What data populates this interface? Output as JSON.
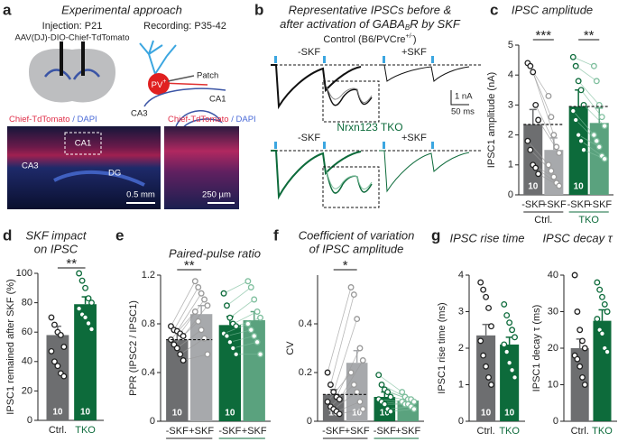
{
  "panel_a": {
    "letter": "a",
    "title": "Experimental approach",
    "injection": "Injection: P21",
    "virus": "AAV(DJ)-DIO-Chief-TdTomato",
    "recording": "Recording: P35-42",
    "cell": "PV",
    "cell_sup": "+",
    "patch": "Patch",
    "ca1": "CA1",
    "ca3": "CA3",
    "dg": "DG",
    "image_left": {
      "stain": "Chief-TdTomato",
      "dapi": "/ DAPI",
      "ca1": "CA1",
      "ca3": "CA3",
      "dg": "DG",
      "scale": "0.5 mm"
    },
    "image_right": {
      "stain": "Chief-TdTomato",
      "dapi": "/ DAPI",
      "scale": "250 µm"
    }
  },
  "panel_b": {
    "letter": "b",
    "title_line1": "Representative IPSCs before &",
    "title_line2": "after activation of GABA",
    "title_sub": "B",
    "title_end": "R by SKF",
    "control": "Control (B6/PVCre",
    "control_sup": "+/-",
    "control_end": ")",
    "minus_top": "-SKF",
    "plus_top": "+SKF",
    "tko": "Nrxn123 TKO",
    "minus_bottom": "-SKF",
    "plus_bottom": "+SKF",
    "scale_current": "1 nA",
    "scale_time": "50 ms"
  },
  "chart_data": [
    {
      "type": "bar",
      "letter": "c",
      "title": [
        "IPSC amplitude"
      ],
      "ylabel": "IPSC1 amplitude (nA)",
      "ylim": [
        0,
        5
      ],
      "yticks": [
        0,
        1,
        2,
        3,
        4,
        5
      ],
      "categories": [
        "-SKF",
        "+SKF",
        "-SKF",
        "+SKF"
      ],
      "groups": [
        "Ctrl.",
        "TKO"
      ],
      "values": [
        2.35,
        1.5,
        2.95,
        2.4
      ],
      "errors": [
        0.5,
        0.4,
        0.55,
        0.5
      ],
      "colors": [
        "#6d6e70",
        "#a7a9ac",
        "#0d6b3b",
        "#5aa27e"
      ],
      "point_colors": [
        "#222222",
        "#999999",
        "#0d6b3b",
        "#7fbf9e"
      ],
      "points": [
        [
          4.4,
          4.3,
          4.1,
          3.0,
          2.5,
          1.8,
          1.5,
          1.0,
          0.9,
          0.7
        ],
        [
          3.3,
          2.6,
          2.0,
          1.6,
          1.4,
          1.0,
          0.8,
          0.6,
          0.4,
          0.3
        ],
        [
          4.6,
          4.3,
          3.8,
          3.5,
          3.0,
          2.8,
          2.5,
          2.0,
          1.8,
          1.5
        ],
        [
          4.3,
          3.8,
          3.0,
          2.6,
          2.3,
          2.0,
          1.8,
          1.6,
          1.3,
          1.2
        ]
      ],
      "n_labels": [
        "10",
        "",
        "10",
        ""
      ],
      "significance": [
        "***",
        "**"
      ],
      "paired": true,
      "reference_line": true
    },
    {
      "type": "bar",
      "letter": "d",
      "title": [
        "SKF impact",
        "on IPSC"
      ],
      "ylabel": "IPSC1 remained after SKF (%)",
      "ylim": [
        0,
        100
      ],
      "yticks": [
        0,
        20,
        40,
        60,
        80,
        100
      ],
      "categories": [
        "Ctrl.",
        "TKO"
      ],
      "values": [
        58,
        79
      ],
      "errors": [
        6,
        5
      ],
      "colors": [
        "#6d6e70",
        "#0d6b3b"
      ],
      "point_colors": [
        "#222222",
        "#0d6b3b"
      ],
      "points": [
        [
          70,
          65,
          60,
          58,
          50,
          47,
          40,
          37,
          32,
          30
        ],
        [
          100,
          95,
          90,
          83,
          80,
          76,
          72,
          70,
          66,
          62
        ]
      ],
      "n_labels": [
        "10",
        "10"
      ],
      "significance": [
        "**"
      ]
    },
    {
      "type": "bar",
      "letter": "e",
      "title": [
        "Paired-pulse ratio"
      ],
      "ylabel": "PPR (IPSC2 / IPSC1)",
      "ylim": [
        0,
        1.2
      ],
      "yticks": [
        0,
        0.4,
        0.8,
        1.2
      ],
      "categories": [
        "-SKF",
        "+SKF",
        "-SKF",
        "+SKF"
      ],
      "groups": [
        "Ctrl.",
        "TKO"
      ],
      "values": [
        0.67,
        0.88,
        0.79,
        0.83
      ],
      "errors": [
        0.06,
        0.07,
        0.07,
        0.07
      ],
      "colors": [
        "#6d6e70",
        "#a7a9ac",
        "#0d6b3b",
        "#5aa27e"
      ],
      "point_colors": [
        "#222222",
        "#999999",
        "#0d6b3b",
        "#7fbf9e"
      ],
      "points": [
        [
          0.78,
          0.75,
          0.74,
          0.72,
          0.7,
          0.67,
          0.63,
          0.6,
          0.55,
          0.5
        ],
        [
          1.15,
          1.1,
          1.05,
          1.0,
          0.95,
          0.9,
          0.82,
          0.75,
          0.68,
          0.55
        ],
        [
          1.05,
          0.95,
          0.85,
          0.8,
          0.78,
          0.72,
          0.7,
          0.65,
          0.6,
          0.55
        ],
        [
          1.15,
          1.1,
          1.0,
          0.9,
          0.85,
          0.8,
          0.75,
          0.7,
          0.65,
          0.55
        ]
      ],
      "n_labels": [
        "10",
        "",
        "10",
        ""
      ],
      "significance": [
        "**"
      ],
      "paired": true,
      "reference_line": true
    },
    {
      "type": "bar",
      "letter": "f",
      "title": [
        "Coefficient of variation",
        "of IPSC amplitude"
      ],
      "ylabel": "CV",
      "ylim": [
        0,
        0.6
      ],
      "yticks": [
        0,
        0.2,
        0.4
      ],
      "categories": [
        "-SKF",
        "+SKF",
        "-SKF",
        "+SKF"
      ],
      "groups": [
        "Ctrl.",
        "TKO"
      ],
      "values": [
        0.11,
        0.24,
        0.1,
        0.085
      ],
      "errors": [
        0.02,
        0.05,
        0.02,
        0.01
      ],
      "colors": [
        "#6d6e70",
        "#a7a9ac",
        "#0d6b3b",
        "#5aa27e"
      ],
      "point_colors": [
        "#222222",
        "#999999",
        "#0d6b3b",
        "#7fbf9e"
      ],
      "points": [
        [
          0.2,
          0.15,
          0.12,
          0.1,
          0.09,
          0.08,
          0.06,
          0.05,
          0.04,
          0.03
        ],
        [
          0.55,
          0.52,
          0.42,
          0.3,
          0.25,
          0.2,
          0.15,
          0.12,
          0.08,
          0.05
        ],
        [
          0.19,
          0.15,
          0.13,
          0.12,
          0.1,
          0.09,
          0.08,
          0.07,
          0.05,
          0.04
        ],
        [
          0.12,
          0.1,
          0.09,
          0.09,
          0.08,
          0.08,
          0.07,
          0.07,
          0.06,
          0.05
        ]
      ],
      "n_labels": [
        "10",
        "10",
        "10",
        ""
      ],
      "significance": [
        "*"
      ],
      "paired": true,
      "reference_line": true
    },
    {
      "type": "bar",
      "letter": "g",
      "title": [
        "IPSC rise time"
      ],
      "ylabel": "IPSC1 rise time (ms)",
      "ylim": [
        0,
        4
      ],
      "yticks": [
        0,
        1,
        2,
        3,
        4
      ],
      "categories": [
        "Ctrl.",
        "TKO"
      ],
      "values": [
        2.35,
        2.1
      ],
      "errors": [
        0.3,
        0.2
      ],
      "colors": [
        "#6d6e70",
        "#0d6b3b"
      ],
      "point_colors": [
        "#222222",
        "#0d6b3b"
      ],
      "points": [
        [
          3.8,
          3.6,
          3.4,
          3.1,
          2.6,
          2.2,
          1.8,
          1.5,
          1.2,
          1.0
        ],
        [
          3.2,
          2.9,
          2.7,
          2.5,
          2.3,
          2.1,
          1.9,
          1.6,
          1.4,
          1.2
        ]
      ],
      "n_labels": [
        "10",
        "10"
      ]
    },
    {
      "type": "bar",
      "title": [
        "IPSC decay τ"
      ],
      "ylabel": "IPSC1 decay τ (ms)",
      "ylim": [
        0,
        40
      ],
      "yticks": [
        0,
        10,
        20,
        30,
        40
      ],
      "categories": [
        "Ctrl.",
        "TKO"
      ],
      "values": [
        20,
        27.5
      ],
      "errors": [
        2.5,
        3
      ],
      "colors": [
        "#6d6e70",
        "#0d6b3b"
      ],
      "point_colors": [
        "#222222",
        "#0d6b3b"
      ],
      "points": [
        [
          40,
          30,
          25,
          22,
          20,
          18,
          17,
          15,
          12,
          10
        ],
        [
          38,
          36,
          34,
          32,
          30,
          28,
          25,
          24,
          20,
          19
        ]
      ]
    }
  ]
}
